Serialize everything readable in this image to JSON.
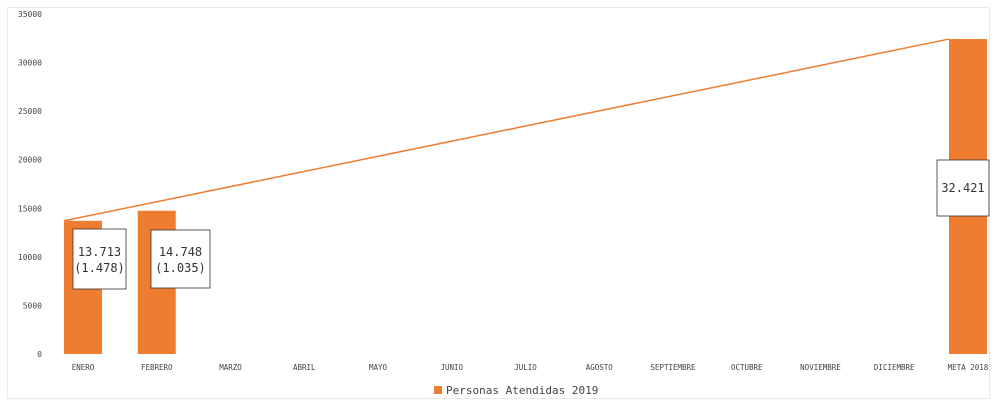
{
  "chart_data": {
    "type": "bar",
    "categories": [
      "ENERO",
      "FEBRERO",
      "MARZO",
      "ABRIL",
      "MAYO",
      "JUNIO",
      "JULIO",
      "AGOSTO",
      "SEPTIEMBRE",
      "OCTUBRE",
      "NOVIEMBRE",
      "DICIEMBRE",
      "META 2018"
    ],
    "series": [
      {
        "name": "Personas Atendidas 2019",
        "values": [
          13713,
          14748,
          null,
          null,
          null,
          null,
          null,
          null,
          null,
          null,
          null,
          null,
          32421
        ],
        "color": "#ee7d31"
      }
    ],
    "trend_line": {
      "from_category": "ENERO",
      "from_value": 13713,
      "to_category": "META 2018",
      "to_value": 32421,
      "color": "#ee7d31"
    },
    "data_labels": [
      {
        "category": "ENERO",
        "value_text": "13.713",
        "sub_text": "(1.478)"
      },
      {
        "category": "FEBRERO",
        "value_text": "14.748",
        "sub_text": "(1.035)"
      },
      {
        "category": "META 2018",
        "value_text": "32.421",
        "sub_text": ""
      }
    ],
    "yticks": [
      "0",
      "5000",
      "10000",
      "15000",
      "20000",
      "25000",
      "30000",
      "35000"
    ],
    "ylim": [
      0,
      35000
    ],
    "grid": false,
    "legend_position": "bottom"
  }
}
